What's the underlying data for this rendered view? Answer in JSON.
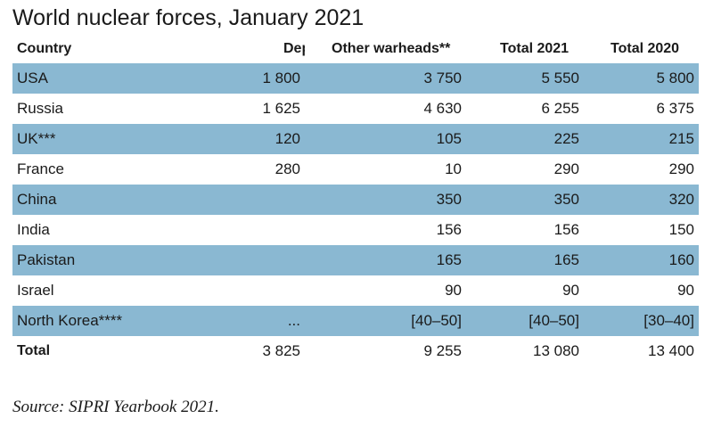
{
  "chart_data": {
    "type": "table",
    "title": "World nuclear forces, January 2021",
    "columns": [
      "Country",
      "Deployed warheads*",
      "Other warheads**",
      "Total 2021",
      "Total 2020"
    ],
    "rows": [
      [
        "USA",
        "1 800",
        "3 750",
        "5 550",
        "5 800"
      ],
      [
        "Russia",
        "1 625",
        "4 630",
        "6 255",
        "6 375"
      ],
      [
        "UK***",
        "120",
        "105",
        "225",
        "215"
      ],
      [
        "France",
        "280",
        "10",
        "290",
        "290"
      ],
      [
        "China",
        "",
        "350",
        "350",
        "320"
      ],
      [
        "India",
        "",
        "156",
        "156",
        "150"
      ],
      [
        "Pakistan",
        "",
        "165",
        "165",
        "160"
      ],
      [
        "Israel",
        "",
        "90",
        "90",
        "90"
      ],
      [
        "North Korea****",
        "...",
        "[40–50]",
        "[40–50]",
        "[30–40]"
      ]
    ],
    "total": [
      "Total",
      "3 825",
      "9 255",
      "13 080",
      "13 400"
    ],
    "source": "Source: SIPRI Yearbook 2021.",
    "row_shading": "alternating",
    "colors": {
      "shaded_row": "#8ab8d2",
      "plain_row": "#ffffff",
      "text": "#1a1a1a"
    }
  }
}
